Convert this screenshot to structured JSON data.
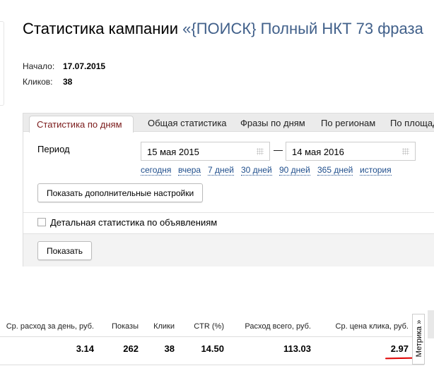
{
  "header": {
    "title": "Статистика кампании",
    "campaign_name": "«{ПОИСК} Полный НКТ 73 фраза"
  },
  "info": {
    "start_label": "Начало:",
    "start_value": "17.07.2015",
    "clicks_label": "Кликов:",
    "clicks_value": "38"
  },
  "tabs": [
    {
      "label": "Статистика по дням",
      "active": true
    },
    {
      "label": "Общая статистика"
    },
    {
      "label": "Фразы по дням"
    },
    {
      "label": "По регионам"
    },
    {
      "label": "По площад"
    }
  ],
  "period": {
    "label": "Период",
    "from": "15 мая 2015",
    "to": "14 мая 2016",
    "dash": "—",
    "quick_links": [
      "сегодня",
      "вчера",
      "7 дней",
      "30 дней",
      "90 дней",
      "365 дней",
      "история"
    ]
  },
  "more_settings_button": "Показать дополнительные настройки",
  "detail_checkbox": {
    "label": "Детальная статистика по объявлениям",
    "checked": false
  },
  "show_button": "Показать",
  "table": {
    "headers": [
      "Ср. расход за день, руб.",
      "Показы",
      "Клики",
      "CTR (%)",
      "Расход всего, руб.",
      "Ср. цена клика, руб."
    ],
    "row": [
      "3.14",
      "262",
      "38",
      "14.50",
      "113.03",
      "2.97"
    ]
  },
  "metrika_tab": "Метрика »",
  "colors": {
    "active_tab": "#7a1a1a",
    "link": "#1f4e8c",
    "annotation": "#e00000"
  }
}
